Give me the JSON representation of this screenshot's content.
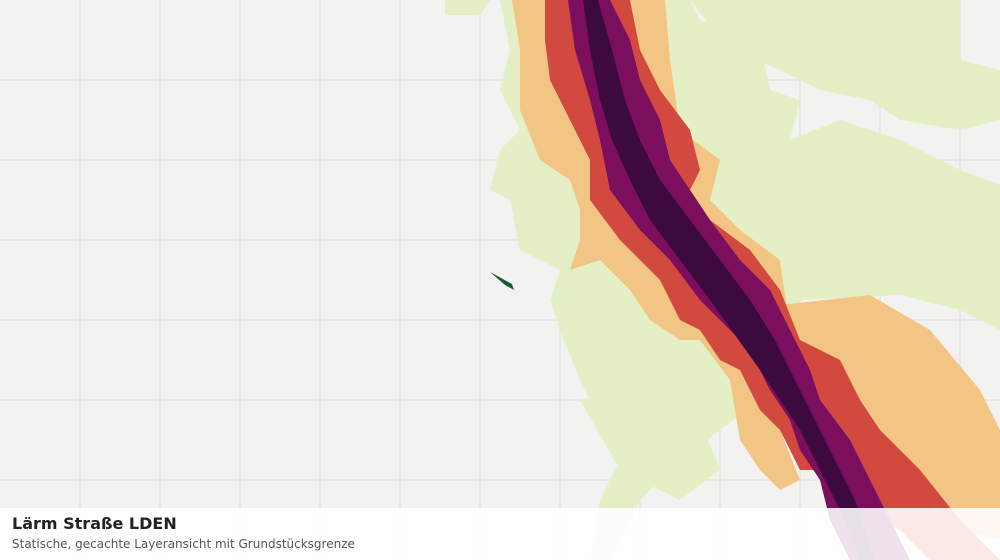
{
  "panel": {
    "title": "Lärm Straße LDEN",
    "subtitle": "Statische, gecachte Layeransicht mit Grundstücksgrenze"
  }
}
